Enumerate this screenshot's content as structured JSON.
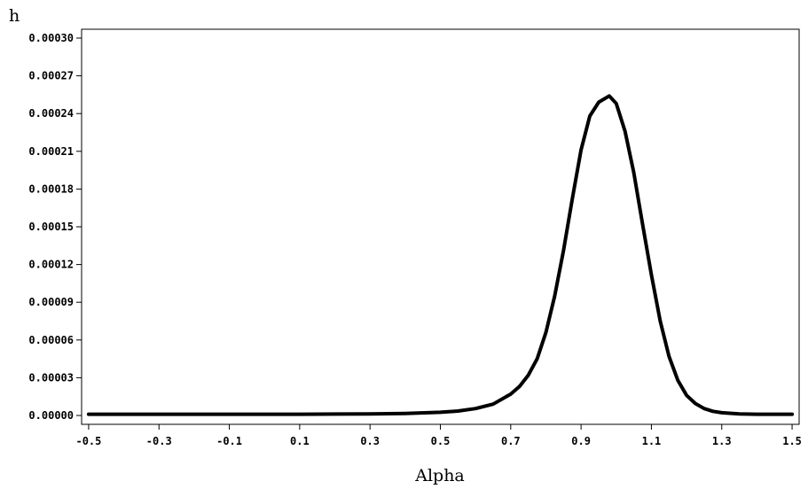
{
  "chart_data": {
    "type": "line",
    "title": "",
    "xlabel": "Alpha",
    "ylabel": "h",
    "xlim": [
      -0.52,
      1.52
    ],
    "ylim": [
      0.0,
      0.0003
    ],
    "x_ticks": [
      -0.5,
      -0.3,
      -0.1,
      0.1,
      0.3,
      0.5,
      0.7,
      0.9,
      1.1,
      1.3,
      1.5
    ],
    "x_tick_labels": [
      "-0.5",
      "-0.3",
      "-0.1",
      "0.1",
      "0.3",
      "0.5",
      "0.7",
      "0.9",
      "1.1",
      "1.3",
      "1.5"
    ],
    "y_ticks": [
      0,
      3e-05,
      6e-05,
      9e-05,
      0.00012,
      0.00015,
      0.00018,
      0.00021,
      0.00024,
      0.00027,
      0.0003
    ],
    "y_tick_labels": [
      "0.00000",
      "0.00003",
      "0.00006",
      "0.00009",
      "0.00012",
      "0.00015",
      "0.00018",
      "0.00021",
      "0.00024",
      "0.00027",
      "0.00030"
    ],
    "grid": false,
    "line_color": "#000000",
    "series": [
      {
        "x": [
          -0.5,
          -0.3,
          -0.1,
          0.1,
          0.3,
          0.4,
          0.5,
          0.55,
          0.6,
          0.65,
          0.7,
          0.725,
          0.75,
          0.775,
          0.8,
          0.825,
          0.85,
          0.875,
          0.9,
          0.925,
          0.95,
          0.98,
          1.0,
          1.025,
          1.05,
          1.075,
          1.1,
          1.125,
          1.15,
          1.175,
          1.2,
          1.225,
          1.25,
          1.275,
          1.3,
          1.35,
          1.4,
          1.5
        ],
        "y": [
          1e-06,
          1e-06,
          1e-06,
          1e-06,
          1.3e-06,
          1.6e-06,
          2.5e-06,
          3.5e-06,
          5.5e-06,
          9e-06,
          1.7e-05,
          2.3e-05,
          3.2e-05,
          4.5e-05,
          6.6e-05,
          9.5e-05,
          0.000131,
          0.000172,
          0.000211,
          0.000238,
          0.000249,
          0.000254,
          0.000248,
          0.000226,
          0.000193,
          0.000152,
          0.000112,
          7.5e-05,
          4.7e-05,
          2.8e-05,
          1.6e-05,
          9.5e-06,
          5.5e-06,
          3.3e-06,
          2.2e-06,
          1.2e-06,
          1e-06,
          1e-06
        ]
      }
    ]
  }
}
